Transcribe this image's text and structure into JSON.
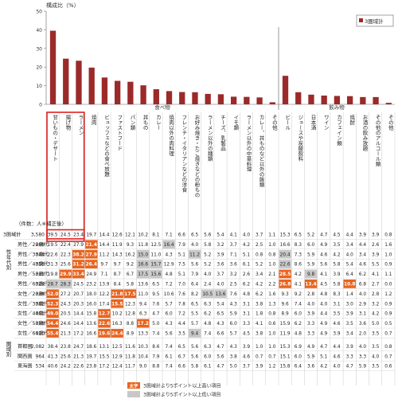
{
  "chart_data": {
    "type": "bar",
    "ylabel": "構成比（%）",
    "ylim": [
      0,
      50
    ],
    "yticks": [
      0,
      10,
      20,
      30,
      40,
      50
    ],
    "legend": {
      "label": "3圏域計",
      "position": "top-right"
    },
    "bar_color": "#9b2a2a",
    "highlight_color": "#e8641e",
    "group_labels": [
      "食べ物",
      "飲み物"
    ],
    "categories": [
      "甘いもの・デザート",
      "揚げ物",
      "ラーメン",
      "焼肉",
      "ビュッフェなどの食べ放題",
      "ファストフード",
      "パン類",
      "丼もの",
      "カレー",
      "焼肉以外の肉料理",
      "フレンチ・イタリアンなどの洋食",
      "お好み焼き・たこ焼きなどの粉もの",
      "ラーメン以外の麺類",
      "チーズ、乳製品",
      "イモ類",
      "ラーメン以外の中華料理",
      "カレー、丼ものなど以外の飯類",
      "その他",
      "ビール",
      "ジュースや炭酸飲料",
      "日本酒",
      "ワイン",
      "カフェイン類",
      "焼酎",
      "お酒の飲み放題",
      "その他のアルコール類",
      "その他"
    ],
    "values": [
      39.5,
      24.5,
      23.4,
      19.7,
      14.4,
      12.6,
      12.1,
      10.2,
      8.1,
      7.1,
      6.6,
      6.5,
      5.6,
      5.4,
      4.1,
      4.0,
      3.7,
      1.1,
      15.3,
      6.5,
      5.2,
      4.7,
      4.5,
      4.4,
      3.9,
      3.9,
      0.8
    ],
    "table": {
      "count_header": "（件数：人※補正後）",
      "row_groups": [
        "性年代別",
        "圏域別"
      ],
      "rows": [
        {
          "label": "3圏域計",
          "n": "3,580",
          "values": [
            "39.5",
            "24.5",
            "23.4",
            "19.7",
            "14.4",
            "12.6",
            "12.1",
            "10.2",
            "8.1",
            "7.1",
            "6.6",
            "6.5",
            "5.6",
            "5.4",
            "4.1",
            "4.0",
            "3.7",
            "1.1",
            "15.3",
            "6.5",
            "5.2",
            "4.7",
            "4.5",
            "4.4",
            "3.9",
            "3.9",
            "0.8"
          ]
        },
        {
          "label": "男性／20歳代",
          "n": "269",
          "values": [
            "19.5",
            "22.4",
            "27.9",
            "21.4",
            "14.4",
            "11.9",
            "9.3",
            "11.8",
            "12.5",
            "16.4",
            "7.9",
            "4.0",
            "5.8",
            "3.2",
            "3.7",
            "4.2",
            "2.5",
            "1.0",
            "16.6",
            "8.3",
            "6.0",
            "4.9",
            "3.5",
            "3.4",
            "4.4",
            "2.6",
            "1.6"
          ]
        },
        {
          "label": "男性／30歳代",
          "n": "344",
          "values": [
            "22.6",
            "22.3",
            "38.2",
            "27.9",
            "11.2",
            "14.3",
            "16.2",
            "15.0",
            "11.0",
            "4.3",
            "5.1",
            "11.2",
            "5.2",
            "3.9",
            "7.1",
            "5.1",
            "0.8",
            "0.8",
            "20.4",
            "7.3",
            "5.9",
            "4.6",
            "4.2",
            "4.0",
            "3.4",
            "3.9",
            "1.0"
          ]
        },
        {
          "label": "男性／40歳代",
          "n": "358",
          "values": [
            "31.3",
            "25.6",
            "31.2",
            "26.4",
            "9.7",
            "9.7",
            "9.2",
            "16.6",
            "15.7",
            "12.9",
            "7.5",
            "5.6",
            "5.2",
            "3.6",
            "3.6",
            "6.1",
            "5.2",
            "1.0",
            "22.6",
            "8.6",
            "5.9",
            "5.6",
            "5.8",
            "5.4",
            "4.6",
            "5.5",
            "0.9"
          ]
        },
        {
          "label": "男性／50歳代",
          "n": "311",
          "values": [
            "19.8",
            "29.9",
            "33.4",
            "24.9",
            "7.1",
            "8.7",
            "6.7",
            "17.5",
            "15.6",
            "4.8",
            "5.1",
            "7.9",
            "4.0",
            "3.7",
            "3.2",
            "2.6",
            "3.4",
            "2.1",
            "28.5",
            "4.2",
            "9.8",
            "4.1",
            "3.9",
            "6.4",
            "6.2",
            "4.1",
            "1.1"
          ]
        },
        {
          "label": "男性／60歳代",
          "n": "324",
          "values": [
            "28.7",
            "28.3",
            "24.5",
            "23.2",
            "13.9",
            "8.4",
            "5.8",
            "13.6",
            "6.5",
            "7.2",
            "7.0",
            "6.4",
            "2.4",
            "4.0",
            "2.5",
            "6.2",
            "4.2",
            "2.2",
            "26.8",
            "4.1",
            "13.4",
            "4.5",
            "5.8",
            "10.8",
            "6.8",
            "2.7",
            "0.0"
          ]
        },
        {
          "label": "女性／20歳代",
          "n": "334",
          "values": [
            "52.0",
            "27.2",
            "20.7",
            "18.0",
            "12.2",
            "21.8",
            "17.5",
            "11.0",
            "9.5",
            "10.6",
            "7.6",
            "8.2",
            "10.5",
            "13.6",
            "7.6",
            "4.8",
            "6.2",
            "1.6",
            "9.3",
            "9.2",
            "2.8",
            "4.8",
            "8.3",
            "1.4",
            "4.0",
            "2.8",
            "1.2"
          ]
        },
        {
          "label": "女性／30歳代",
          "n": "382",
          "values": [
            "52.3",
            "24.3",
            "20.3",
            "16.0",
            "17.4",
            "15.5",
            "12.3",
            "9.4",
            "7.6",
            "5.7",
            "7.8",
            "6.5",
            "6.3",
            "5.4",
            "4.3",
            "3.1",
            "3.8",
            "1.3",
            "9.6",
            "7.4",
            "4.0",
            "4.0",
            "3.1",
            "3.0",
            "2.9",
            "3.2",
            "0.9"
          ]
        },
        {
          "label": "女性／40歳代",
          "n": "461",
          "values": [
            "49.0",
            "20.5",
            "14.4",
            "15.8",
            "12.7",
            "10.2",
            "12.8",
            "6.3",
            "4.7",
            "6.0",
            "7.2",
            "5.5",
            "6.2",
            "6.5",
            "5.9",
            "3.1",
            "1.8",
            "0.8",
            "8.9",
            "6.0",
            "3.9",
            "4.4",
            "3.5",
            "3.9",
            "3.1",
            "4.2",
            "0.9"
          ]
        },
        {
          "label": "女性／50歳代",
          "n": "358",
          "values": [
            "54.4",
            "24.6",
            "14.4",
            "13.6",
            "22.6",
            "16.3",
            "8.8",
            "17.2",
            "5.0",
            "4.3",
            "4.4",
            "5.7",
            "4.8",
            "4.3",
            "6.0",
            "3.3",
            "4.1",
            "0.6",
            "15.9",
            "6.2",
            "3.3",
            "4.9",
            "4.6",
            "3.5",
            "3.6",
            "5.0",
            "0.5"
          ]
        },
        {
          "label": "女性／60歳代",
          "n": "410",
          "values": [
            "55.4",
            "21.3",
            "17.2",
            "16.6",
            "19.6",
            "24.4",
            "8.9",
            "13.3",
            "7.4",
            "5.6",
            "3.5",
            "9.4",
            "7.4",
            "6.6",
            "5.7",
            "4.5",
            "3.8",
            "1.0",
            "11.9",
            "4.8",
            "3.3",
            "4.9",
            "3.9",
            "3.4",
            "2.0",
            "3.5",
            "0.7"
          ]
        },
        {
          "label": "首都圏",
          "n": "2,082",
          "values": [
            "38.4",
            "23.8",
            "24.7",
            "18.6",
            "13.1",
            "12.5",
            "11.6",
            "10.3",
            "8.6",
            "7.4",
            "6.5",
            "5.6",
            "6.3",
            "4.7",
            "4.3",
            "3.9",
            "1.0",
            "1.0",
            "15.3",
            "6.9",
            "4.9",
            "4.7",
            "4.4",
            "3.9",
            "4.0",
            "3.5",
            "0.8"
          ]
        },
        {
          "label": "関西圏",
          "n": "964",
          "values": [
            "41.3",
            "25.6",
            "21.3",
            "19.7",
            "15.5",
            "12.9",
            "11.8",
            "10.4",
            "7.9",
            "6.1",
            "6.7",
            "5.6",
            "6.0",
            "5.6",
            "3.8",
            "4.6",
            "0.7",
            "0.7",
            "15.1",
            "6.0",
            "5.9",
            "5.1",
            "4.6",
            "3.3",
            "3.3",
            "4.0",
            "0.7"
          ]
        },
        {
          "label": "東海圏",
          "n": "534",
          "values": [
            "40.6",
            "24.2",
            "22.6",
            "23.8",
            "17.2",
            "12.4",
            "11.7",
            "9.0",
            "8.8",
            "7.4",
            "6.6",
            "5.8",
            "6.1",
            "4.7",
            "5.0",
            "3.7",
            "3.9",
            "1.2",
            "15.8",
            "6.4",
            "3.6",
            "4.2",
            "4.0",
            "4.7",
            "5.9",
            "3.5",
            "0.6"
          ]
        }
      ],
      "highlight_row_index": 0,
      "highlight_column_indices": [
        0,
        1,
        2
      ],
      "orange_cells": [
        [
          1,
          3
        ],
        [
          2,
          2
        ],
        [
          2,
          3
        ],
        [
          3,
          2
        ],
        [
          3,
          3
        ],
        [
          4,
          1
        ],
        [
          4,
          2
        ],
        [
          4,
          18
        ],
        [
          5,
          18
        ],
        [
          5,
          23
        ],
        [
          6,
          0
        ],
        [
          6,
          5
        ],
        [
          6,
          6
        ],
        [
          7,
          0
        ],
        [
          7,
          5
        ],
        [
          8,
          0
        ],
        [
          8,
          4
        ],
        [
          9,
          0
        ],
        [
          9,
          4
        ],
        [
          9,
          7
        ],
        [
          10,
          0
        ],
        [
          10,
          5
        ],
        [
          10,
          4
        ],
        [
          5,
          20
        ]
      ],
      "gray_cells": [
        [
          1,
          9
        ],
        [
          2,
          7
        ],
        [
          2,
          11
        ],
        [
          3,
          7
        ],
        [
          3,
          8
        ],
        [
          4,
          7
        ],
        [
          4,
          8
        ],
        [
          5,
          0
        ],
        [
          5,
          1
        ],
        [
          6,
          13
        ],
        [
          6,
          12
        ],
        [
          9,
          4
        ],
        [
          10,
          11
        ],
        [
          2,
          18
        ],
        [
          3,
          18
        ],
        [
          4,
          20
        ]
      ]
    },
    "footnotes": {
      "bold_sample": "太字",
      "bold_note": "3圏域計より5ポイント以上高い項目",
      "gray_note": "3圏域計より5ポイント以上低い項目"
    }
  }
}
